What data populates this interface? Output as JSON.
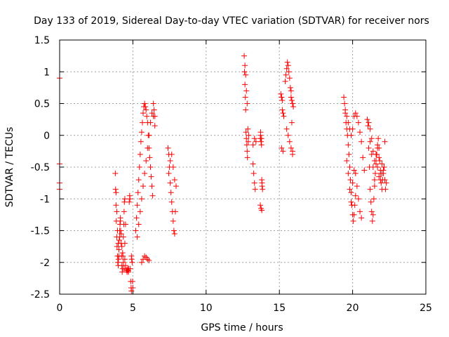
{
  "chart_data": {
    "type": "scatter",
    "title": "Day 133 of 2019, Sidereal Day-to-day VTEC variation (SDTVAR) for receiver nors",
    "xlabel": "GPS time / hours",
    "ylabel": "SDTVAR / TECUs",
    "xlim": [
      0,
      25
    ],
    "ylim": [
      -2.5,
      1.5
    ],
    "xticks": [
      0,
      5,
      10,
      15,
      20,
      25
    ],
    "xtick_labels": [
      "0",
      "5",
      "10",
      "15",
      "20",
      "25"
    ],
    "yticks": [
      -2.5,
      -2,
      -1.5,
      -1,
      -0.5,
      0,
      0.5,
      1,
      1.5
    ],
    "ytick_labels": [
      "-2.5",
      "-2",
      "-1.5",
      "-1",
      "-0.5",
      "0",
      "0.5",
      "1",
      "1.5"
    ],
    "grid": true,
    "marker": "plus",
    "color": "#ff0000",
    "series": [
      {
        "name": "sdtvar",
        "x": [
          0.0,
          0.0,
          0.0,
          0.0,
          3.8,
          3.82,
          3.85,
          3.87,
          3.9,
          3.92,
          3.95,
          3.97,
          4.0,
          4.02,
          4.05,
          4.07,
          4.1,
          4.12,
          4.15,
          4.17,
          4.2,
          4.22,
          4.25,
          4.27,
          4.3,
          4.32,
          4.35,
          4.38,
          4.4,
          4.42,
          4.45,
          3.85,
          3.9,
          3.95,
          4.0,
          4.05,
          4.1,
          4.15,
          4.2,
          4.25,
          4.3,
          4.35,
          4.4,
          4.45,
          4.5,
          4.45,
          4.5,
          4.55,
          4.6,
          4.62,
          4.65,
          4.68,
          4.7,
          4.72,
          4.75,
          4.78,
          4.8,
          4.82,
          4.85,
          4.88,
          4.9,
          4.9,
          4.92,
          4.95,
          4.98,
          5.0,
          5.2,
          5.25,
          5.3,
          5.35,
          5.4,
          5.45,
          5.5,
          5.55,
          5.6,
          5.65,
          5.7,
          5.75,
          5.8,
          5.85,
          5.9,
          5.95,
          6.0,
          6.05,
          6.1,
          6.15,
          6.2,
          6.25,
          6.3,
          6.35,
          6.4,
          6.45,
          6.5,
          5.3,
          5.4,
          5.5,
          5.6,
          5.7,
          5.8,
          5.9,
          6.0,
          6.1,
          6.2,
          6.3,
          6.4,
          6.5,
          5.6,
          5.7,
          5.8,
          5.9,
          6.0,
          6.1,
          7.4,
          7.45,
          7.5,
          7.55,
          7.6,
          7.65,
          7.7,
          7.75,
          7.8,
          7.85,
          7.9,
          7.95,
          7.45,
          7.55,
          7.65,
          7.75,
          7.85,
          12.6,
          12.62,
          12.65,
          12.68,
          12.7,
          12.72,
          12.75,
          12.78,
          12.8,
          12.82,
          12.85,
          12.88,
          12.9,
          12.65,
          12.7,
          12.75,
          12.8,
          13.2,
          13.25,
          13.3,
          13.35,
          13.4,
          13.2,
          13.3,
          13.7,
          13.72,
          13.75,
          13.78,
          13.8,
          13.82,
          13.85,
          13.7,
          13.75,
          13.8,
          13.72,
          13.78,
          13.82,
          15.1,
          15.15,
          15.2,
          15.25,
          15.3,
          15.15,
          15.25,
          15.2,
          15.15,
          15.4,
          15.45,
          15.5,
          15.55,
          15.6,
          15.65,
          15.7,
          15.75,
          15.8,
          15.85,
          15.9,
          15.95,
          15.5,
          15.6,
          15.7,
          15.8,
          15.9,
          15.8,
          15.85,
          15.9,
          19.4,
          19.45,
          19.5,
          19.55,
          19.6,
          19.65,
          19.7,
          19.75,
          19.8,
          19.85,
          19.9,
          19.95,
          20.0,
          20.05,
          20.1,
          20.15,
          20.2,
          19.5,
          19.6,
          19.7,
          19.8,
          19.9,
          20.0,
          20.1,
          20.2,
          20.3,
          20.4,
          20.5,
          20.6,
          20.7,
          20.8,
          19.6,
          19.7,
          19.8,
          19.9,
          20.0,
          20.1,
          20.2,
          20.3,
          20.4,
          20.5,
          20.6,
          21.0,
          21.05,
          21.1,
          21.15,
          21.2,
          21.25,
          21.3,
          21.35,
          21.4,
          21.45,
          21.5,
          21.55,
          21.6,
          21.65,
          21.7,
          21.75,
          21.8,
          21.85,
          21.9,
          21.95,
          22.0,
          22.05,
          22.1,
          22.15,
          22.2,
          22.25,
          22.3,
          21.2,
          21.3,
          21.4,
          21.5,
          21.6,
          21.7,
          21.8,
          21.9,
          22.0,
          22.1,
          22.2,
          21.1,
          21.2,
          21.3,
          21.4,
          21.5,
          21.6,
          21.7,
          21.8,
          21.9,
          22.0
        ],
        "y": [
          0.9,
          -0.45,
          -0.75,
          -0.85,
          -0.6,
          -0.85,
          -1.1,
          -1.35,
          -1.6,
          -1.75,
          -1.9,
          -2.0,
          -2.05,
          -1.95,
          -1.8,
          -1.65,
          -1.5,
          -1.4,
          -1.35,
          -1.5,
          -1.7,
          -1.9,
          -2.05,
          -2.15,
          -2.1,
          -1.9,
          -1.6,
          -1.4,
          -1.2,
          -1.05,
          -1.0,
          -0.9,
          -1.2,
          -1.5,
          -1.7,
          -1.9,
          -1.6,
          -1.3,
          -1.55,
          -1.75,
          -1.85,
          -2.0,
          -2.1,
          -1.7,
          -1.4,
          -1.95,
          -2.05,
          -2.12,
          -2.15,
          -2.12,
          -2.1,
          -2.13,
          -2.15,
          -2.1,
          -1.05,
          -0.95,
          -1.0,
          -2.1,
          -2.3,
          -2.4,
          -2.45,
          -1.9,
          -1.95,
          -2.0,
          -2.3,
          -2.4,
          -1.5,
          -1.3,
          -1.1,
          -0.9,
          -0.7,
          -0.5,
          -0.3,
          -0.1,
          0.05,
          0.2,
          0.35,
          0.45,
          0.5,
          0.45,
          0.4,
          0.3,
          0.2,
          0.0,
          -0.2,
          -0.35,
          -0.5,
          -0.65,
          -0.8,
          -0.95,
          0.5,
          0.4,
          0.3,
          -1.6,
          -1.4,
          -1.2,
          -1.0,
          -0.8,
          -0.6,
          -0.4,
          -0.2,
          0.0,
          0.2,
          0.35,
          0.3,
          0.15,
          -2.0,
          -1.95,
          -1.9,
          -1.92,
          -1.95,
          -1.97,
          -0.2,
          -0.3,
          -0.5,
          -0.75,
          -0.9,
          -1.05,
          -1.2,
          -1.35,
          -1.5,
          -1.55,
          -1.2,
          -0.8,
          -0.6,
          -0.4,
          -0.3,
          -0.5,
          -0.7,
          1.25,
          1.0,
          0.8,
          0.6,
          0.4,
          0.05,
          -0.05,
          -0.15,
          -0.25,
          -0.35,
          0.1,
          -0.1,
          0.0,
          1.1,
          0.95,
          0.7,
          0.5,
          -0.45,
          -0.6,
          -0.75,
          -0.85,
          -0.1,
          -0.15,
          -0.05,
          -0.05,
          0.0,
          -0.1,
          -0.15,
          -0.7,
          -0.8,
          -0.85,
          -1.1,
          -1.15,
          -1.18,
          0.05,
          -0.05,
          -0.75,
          0.65,
          0.6,
          0.4,
          0.35,
          0.3,
          -0.2,
          -0.25,
          0.55,
          0.6,
          0.85,
          0.95,
          1.05,
          1.15,
          1.1,
          1.0,
          0.9,
          0.75,
          0.6,
          0.55,
          0.5,
          0.45,
          0.1,
          0.0,
          -0.1,
          -0.2,
          -0.3,
          0.7,
          0.2,
          -0.25,
          0.6,
          0.5,
          0.35,
          0.2,
          0.1,
          0.0,
          -0.15,
          -0.3,
          -0.5,
          -0.7,
          -0.9,
          -1.1,
          -1.25,
          -1.35,
          -1.25,
          -1.1,
          -0.95,
          0.4,
          0.3,
          0.2,
          0.1,
          0.0,
          0.1,
          0.3,
          0.35,
          0.3,
          0.2,
          0.05,
          -0.1,
          -0.35,
          -0.55,
          -0.4,
          -0.6,
          -0.85,
          -1.05,
          -0.75,
          -0.55,
          -0.6,
          -0.8,
          -1.0,
          -1.2,
          -1.3,
          0.25,
          0.15,
          -0.2,
          -0.5,
          -0.85,
          -1.05,
          -1.2,
          -1.35,
          -1.25,
          -1.0,
          -0.8,
          -0.6,
          -0.45,
          -0.3,
          -0.15,
          -0.05,
          -0.2,
          -0.4,
          -0.6,
          -0.75,
          -0.85,
          -0.7,
          -0.55,
          -0.5,
          -0.7,
          -0.85,
          -0.75,
          -0.1,
          -0.3,
          -0.5,
          -0.7,
          -0.4,
          -0.2,
          -0.35,
          -0.55,
          -0.45,
          -0.6,
          -0.1,
          0.2,
          0.1,
          -0.05,
          -0.25,
          -0.4,
          -0.3,
          -0.5,
          -0.65,
          -0.7,
          -0.6
        ]
      }
    ]
  }
}
